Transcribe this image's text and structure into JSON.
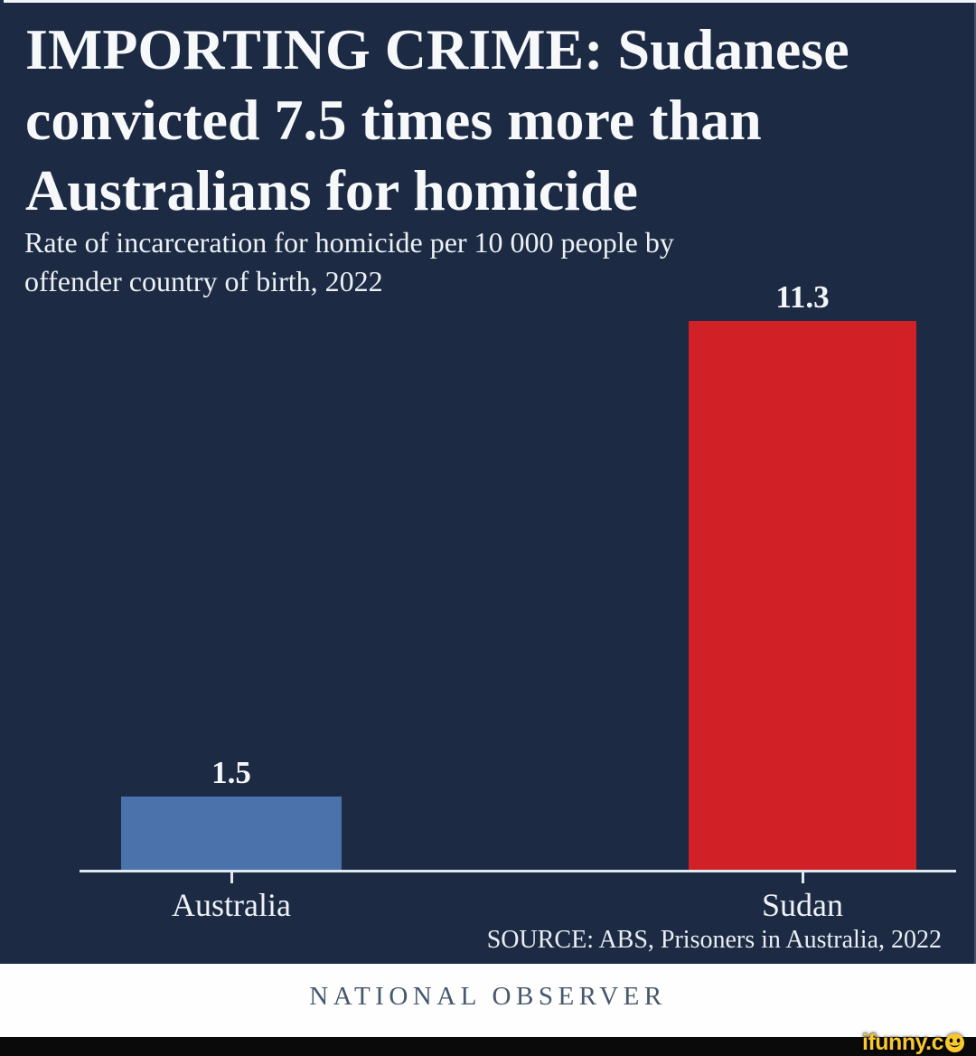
{
  "header": {
    "title_lines": [
      "IMPORTING CRIME: Sudanese",
      "convicted 7.5 times more than",
      "Australians for homicide"
    ],
    "subtitle_lines": [
      "Rate of incarceration for homicide per 10 000 people by",
      "offender country of birth, 2022"
    ]
  },
  "chart_data": {
    "type": "bar",
    "title": "IMPORTING CRIME: Sudanese convicted 7.5 times more than Australians for homicide",
    "subtitle": "Rate of incarceration for homicide per 10 000 people by offender country of birth, 2022",
    "categories": [
      "Australia",
      "Sudan"
    ],
    "values": [
      1.5,
      11.3
    ],
    "value_labels": [
      "1.5",
      "11.3"
    ],
    "bar_colors": [
      "#4c72ab",
      "#d22027"
    ],
    "xlabel": "",
    "ylabel": "",
    "ylim": [
      0,
      12
    ],
    "grid": false,
    "legend": false,
    "source": "SOURCE: ABS, Prisoners in Australia, 2022"
  },
  "footer": {
    "brand": "NATIONAL OBSERVER"
  },
  "watermark": {
    "label": "ifunny.co",
    "prefix": "ifunny.c",
    "smiley_icon": "smiley-face-o",
    "text_color": "#f9c82b",
    "bar_color": "#0a0a0a"
  },
  "colors": {
    "background": "#1c2a43",
    "axis": "#e0e8f1",
    "title_text": "#f6f8fa",
    "footer_text": "#46586e"
  }
}
